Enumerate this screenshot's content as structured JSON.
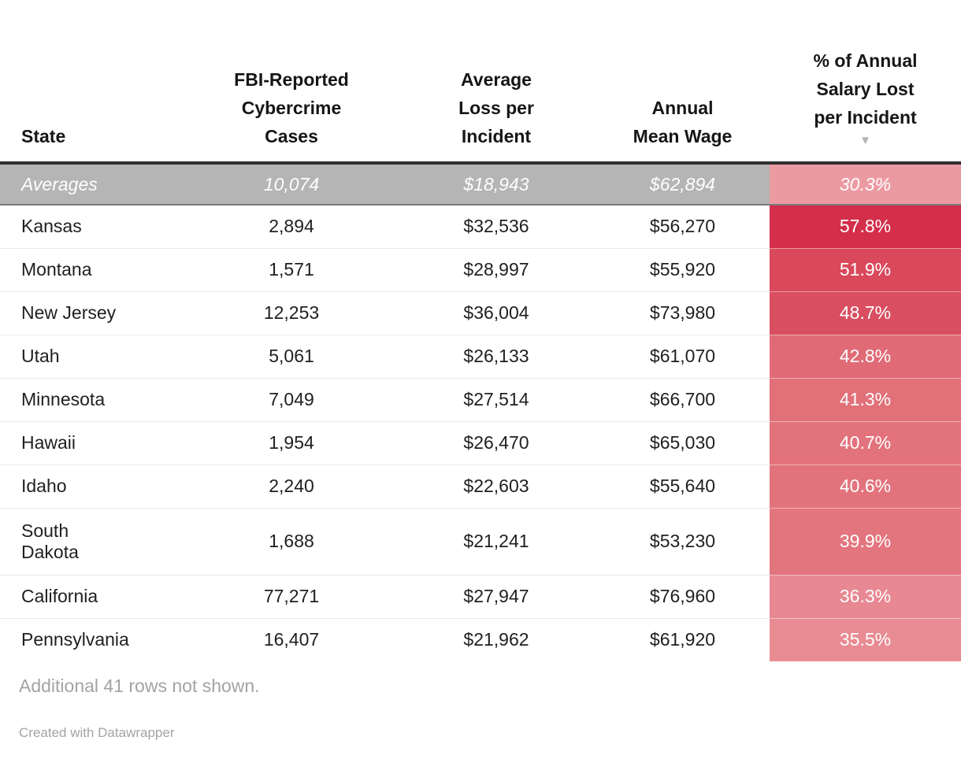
{
  "table": {
    "headers": [
      {
        "label": "State"
      },
      {
        "label": "FBI-Reported\nCybercrime\nCases"
      },
      {
        "label": "Average\nLoss per\nIncident"
      },
      {
        "label": "Annual\nMean Wage"
      },
      {
        "label": "% of Annual\nSalary Lost\nper Incident"
      }
    ],
    "sort_icon": "▼",
    "averages": {
      "state": "Averages",
      "cases": "10,074",
      "loss": "$18,943",
      "wage": "$62,894",
      "pct": "30.3%"
    },
    "rows": [
      {
        "state": "Kansas",
        "cases": "2,894",
        "loss": "$32,536",
        "wage": "$56,270",
        "pct": "57.8%",
        "pct_color": "#d32e4a"
      },
      {
        "state": "Montana",
        "cases": "1,571",
        "loss": "$28,997",
        "wage": "$55,920",
        "pct": "51.9%",
        "pct_color": "#d9485b"
      },
      {
        "state": "New Jersey",
        "cases": "12,253",
        "loss": "$36,004",
        "wage": "$73,980",
        "pct": "48.7%",
        "pct_color": "#d94e60"
      },
      {
        "state": "Utah",
        "cases": "5,061",
        "loss": "$26,133",
        "wage": "$61,070",
        "pct": "42.8%",
        "pct_color": "#e06b77"
      },
      {
        "state": "Minnesota",
        "cases": "7,049",
        "loss": "$27,514",
        "wage": "$66,700",
        "pct": "41.3%",
        "pct_color": "#e17079"
      },
      {
        "state": "Hawaii",
        "cases": "1,954",
        "loss": "$26,470",
        "wage": "$65,030",
        "pct": "40.7%",
        "pct_color": "#e2727c"
      },
      {
        "state": "Idaho",
        "cases": "2,240",
        "loss": "$22,603",
        "wage": "$55,640",
        "pct": "40.6%",
        "pct_color": "#e2737c"
      },
      {
        "state": "South\nDakota",
        "cases": "1,688",
        "loss": "$21,241",
        "wage": "$53,230",
        "pct": "39.9%",
        "pct_color": "#e3757e"
      },
      {
        "state": "California",
        "cases": "77,271",
        "loss": "$27,947",
        "wage": "$76,960",
        "pct": "36.3%",
        "pct_color": "#e78892"
      },
      {
        "state": "Pennsylvania",
        "cases": "16,407",
        "loss": "$21,962",
        "wage": "$61,920",
        "pct": "35.5%",
        "pct_color": "#e88b93"
      }
    ]
  },
  "footer": {
    "note": "Additional 41 rows not shown.",
    "credit": "Created with Datawrapper"
  },
  "colors": {
    "avg_bg": "#b5b5b5",
    "avg_pct_bg": "#ec9aa2",
    "header_rule": "#2f2f2f",
    "avg_rule": "#7b7b7b",
    "row_rule": "#e9e9e9",
    "pct_text": "#ffffff",
    "sort_arrow": "#b3b3b3",
    "text": "#1f1f1f",
    "muted_text": "#a3a3a3"
  },
  "chart_data": {
    "type": "table",
    "title": "",
    "columns": [
      "State",
      "FBI-Reported Cybercrime Cases",
      "Average Loss per Incident",
      "Annual Mean Wage",
      "% of Annual Salary Lost per Incident"
    ],
    "sorted_by": "% of Annual Salary Lost per Incident (descending)",
    "averages": {
      "cases": 10074,
      "loss_usd": 18943,
      "wage_usd": 62894,
      "pct_salary_lost": 30.3
    },
    "rows": [
      [
        "Kansas",
        2894,
        32536,
        56270,
        57.8
      ],
      [
        "Montana",
        1571,
        28997,
        55920,
        51.9
      ],
      [
        "New Jersey",
        12253,
        36004,
        73980,
        48.7
      ],
      [
        "Utah",
        5061,
        26133,
        61070,
        42.8
      ],
      [
        "Minnesota",
        7049,
        27514,
        66700,
        41.3
      ],
      [
        "Hawaii",
        1954,
        26470,
        65030,
        40.7
      ],
      [
        "Idaho",
        2240,
        22603,
        55640,
        40.6
      ],
      [
        "South Dakota",
        1688,
        21241,
        53230,
        39.9
      ],
      [
        "California",
        77271,
        27947,
        76960,
        36.3
      ],
      [
        "Pennsylvania",
        16407,
        21962,
        61920,
        35.5
      ]
    ],
    "note": "Additional 41 rows not shown."
  }
}
